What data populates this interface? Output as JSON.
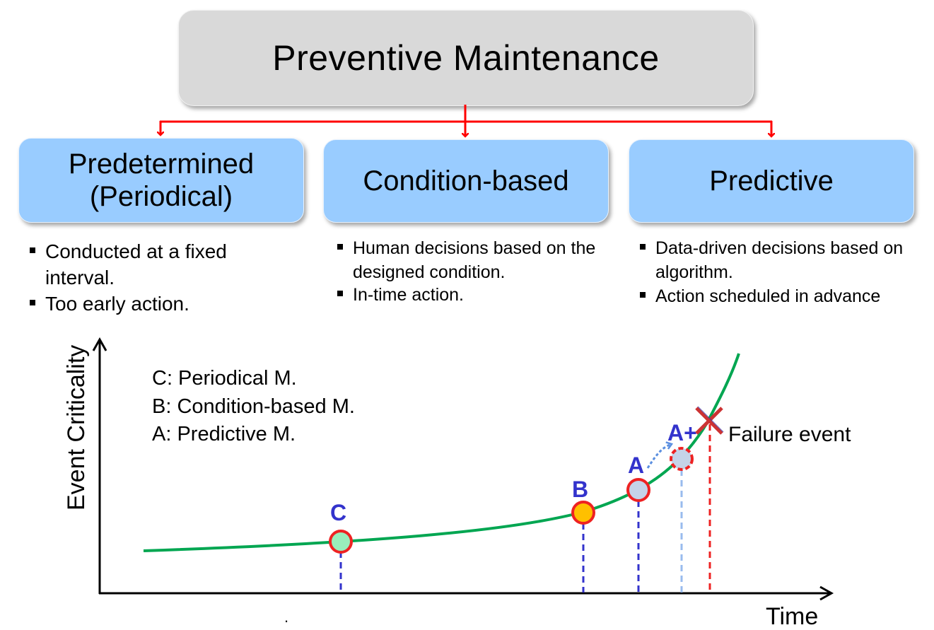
{
  "title": "Preventive Maintenance",
  "categories": [
    {
      "label": "Predetermined\n(Periodical)",
      "bullets": [
        "Conducted at a fixed interval.",
        "Too early action."
      ]
    },
    {
      "label": "Condition-based",
      "bullets": [
        "Human decisions based on the designed condition.",
        "In-time action."
      ]
    },
    {
      "label": "Predictive",
      "bullets": [
        "Data-driven decisions based on algorithm.",
        "Action scheduled in advance"
      ]
    }
  ],
  "chart": {
    "y_axis_label": "Event Criticality",
    "x_axis_label": "Time",
    "legend": [
      "C: Periodical M.",
      "B: Condition-based M.",
      "A: Predictive M."
    ],
    "points": {
      "C": "C",
      "B": "B",
      "A": "A",
      "A_plus": "A+"
    },
    "failure_label": "Failure event",
    "dot": "."
  },
  "colors": {
    "title_box": "#d9d9d9",
    "category_box": "#99ccff",
    "connector": "#ff0000",
    "curve": "#00a651",
    "point_label": "#3333cc",
    "failure_mark": "#cc3333"
  }
}
